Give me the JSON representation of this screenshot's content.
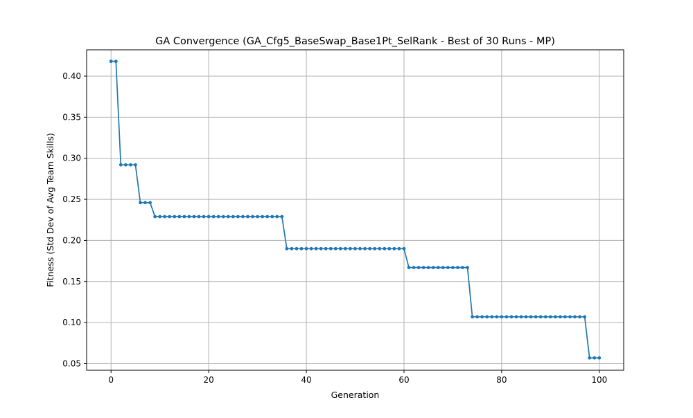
{
  "colors": {
    "line": "#1f77b4",
    "grid": "#b0b0b0",
    "axes": "#000000"
  },
  "chart_data": {
    "type": "line",
    "title": "GA Convergence (GA_Cfg5_BaseSwap_Base1Pt_SelRank - Best of 30 Runs - MP)",
    "xlabel": "Generation",
    "ylabel": "Fitness (Std Dev of Avg Team Skills)",
    "xlim": [
      -5,
      105
    ],
    "ylim": [
      0.042,
      0.432
    ],
    "xticks": [
      0,
      20,
      40,
      60,
      80,
      100
    ],
    "xtick_labels": [
      "0",
      "20",
      "40",
      "60",
      "80",
      "100"
    ],
    "yticks": [
      0.05,
      0.1,
      0.15,
      0.2,
      0.25,
      0.3,
      0.35,
      0.4
    ],
    "ytick_labels": [
      "0.05",
      "0.10",
      "0.15",
      "0.20",
      "0.25",
      "0.30",
      "0.35",
      "0.40"
    ],
    "grid": true,
    "marker": "circle",
    "series": [
      {
        "x": [
          0,
          1,
          2,
          3,
          4,
          5,
          6,
          7,
          8,
          9,
          10,
          11,
          12,
          13,
          14,
          15,
          16,
          17,
          18,
          19,
          20,
          21,
          22,
          23,
          24,
          25,
          26,
          27,
          28,
          29,
          30,
          31,
          32,
          33,
          34,
          35,
          36,
          37,
          38,
          39,
          40,
          41,
          42,
          43,
          44,
          45,
          46,
          47,
          48,
          49,
          50,
          51,
          52,
          53,
          54,
          55,
          56,
          57,
          58,
          59,
          60,
          61,
          62,
          63,
          64,
          65,
          66,
          67,
          68,
          69,
          70,
          71,
          72,
          73,
          74,
          75,
          76,
          77,
          78,
          79,
          80,
          81,
          82,
          83,
          84,
          85,
          86,
          87,
          88,
          89,
          90,
          91,
          92,
          93,
          94,
          95,
          96,
          97,
          98,
          99,
          100
        ],
        "values": [
          0.418,
          0.418,
          0.292,
          0.292,
          0.292,
          0.292,
          0.246,
          0.246,
          0.246,
          0.229,
          0.229,
          0.229,
          0.229,
          0.229,
          0.229,
          0.229,
          0.229,
          0.229,
          0.229,
          0.229,
          0.229,
          0.229,
          0.229,
          0.229,
          0.229,
          0.229,
          0.229,
          0.229,
          0.229,
          0.229,
          0.229,
          0.229,
          0.229,
          0.229,
          0.229,
          0.229,
          0.19,
          0.19,
          0.19,
          0.19,
          0.19,
          0.19,
          0.19,
          0.19,
          0.19,
          0.19,
          0.19,
          0.19,
          0.19,
          0.19,
          0.19,
          0.19,
          0.19,
          0.19,
          0.19,
          0.19,
          0.19,
          0.19,
          0.19,
          0.19,
          0.19,
          0.167,
          0.167,
          0.167,
          0.167,
          0.167,
          0.167,
          0.167,
          0.167,
          0.167,
          0.167,
          0.167,
          0.167,
          0.167,
          0.107,
          0.107,
          0.107,
          0.107,
          0.107,
          0.107,
          0.107,
          0.107,
          0.107,
          0.107,
          0.107,
          0.107,
          0.107,
          0.107,
          0.107,
          0.107,
          0.107,
          0.107,
          0.107,
          0.107,
          0.107,
          0.107,
          0.107,
          0.107,
          0.057,
          0.057,
          0.057
        ]
      }
    ]
  }
}
